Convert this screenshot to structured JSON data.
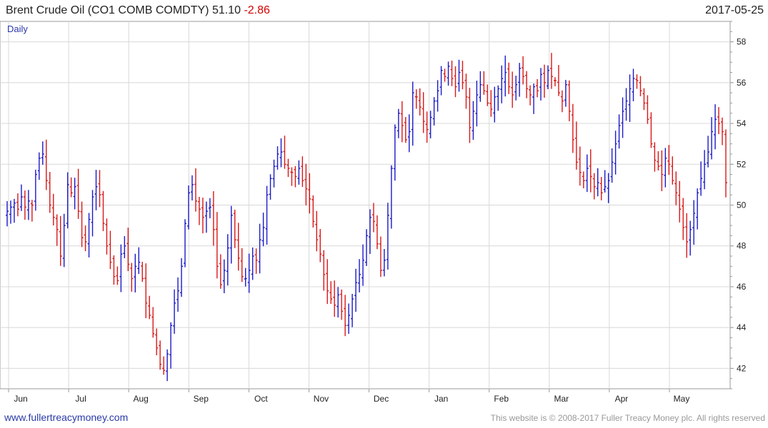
{
  "header": {
    "title_prefix": "Brent Crude Oil  (CO1 COMB COMDTY)",
    "last": "51.10",
    "change": "-2.86",
    "date": "2017-05-25"
  },
  "footer": {
    "site": "www.fullertreacymoney.com",
    "copyright": "This website is © 2008-2017 Fuller Treacy Money plc. All rights reserved"
  },
  "colors": {
    "up": "#1a1ac8",
    "down": "#d81818",
    "grid": "#d8d8d8",
    "frame": "#9a9a9a"
  },
  "chart_data": {
    "type": "bar",
    "style": "ohlc-daily",
    "period_label": "Daily",
    "ylim": [
      41,
      59
    ],
    "y_ticks": [
      42,
      44,
      46,
      48,
      50,
      52,
      54,
      56,
      58
    ],
    "x_ticks": [
      "Jun",
      "Jul",
      "Aug",
      "Sep",
      "Oct",
      "Nov",
      "Dec",
      "Jan",
      "Feb",
      "Mar",
      "Apr",
      "May"
    ],
    "grid": true,
    "approx_close_series": [
      49.7,
      49.9,
      50.1,
      49.8,
      50.4,
      49.9,
      50.2,
      50.0,
      51.5,
      52.3,
      52.5,
      51.2,
      50.0,
      49.4,
      48.8,
      47.5,
      49.0,
      51.0,
      50.6,
      50.9,
      49.7,
      48.4,
      48.2,
      49.3,
      50.4,
      50.9,
      50.5,
      49.1,
      48.0,
      47.2,
      46.5,
      46.3,
      47.6,
      48.0,
      47.1,
      46.4,
      47.0,
      47.2,
      46.4,
      45.2,
      44.6,
      43.7,
      43.0,
      42.2,
      41.9,
      42.7,
      44.1,
      45.2,
      45.8,
      47.0,
      49.1,
      50.6,
      51.0,
      50.2,
      49.8,
      49.4,
      49.7,
      49.9,
      48.8,
      47.0,
      46.1,
      46.8,
      47.9,
      49.5,
      48.3,
      47.4,
      46.5,
      46.4,
      46.8,
      47.5,
      47.3,
      48.3,
      48.9,
      50.5,
      51.3,
      51.9,
      52.5,
      52.6,
      52.0,
      51.8,
      51.6,
      51.4,
      51.8,
      51.2,
      50.8,
      50.3,
      49.2,
      48.3,
      47.6,
      46.6,
      45.8,
      45.4,
      45.1,
      45.6,
      44.8,
      44.1,
      44.6,
      45.4,
      46.2,
      46.6,
      47.3,
      48.5,
      49.4,
      49.2,
      48.1,
      46.8,
      47.3,
      49.5,
      51.8,
      53.8,
      54.5,
      53.9,
      53.2,
      53.6,
      55.5,
      55.3,
      54.8,
      54.1,
      53.7,
      54.3,
      55.1,
      55.6,
      56.6,
      56.3,
      56.8,
      56.2,
      55.8,
      56.5,
      56.0,
      55.3,
      53.8,
      54.6,
      55.4,
      55.9,
      55.6,
      55.0,
      54.7,
      55.3,
      55.7,
      56.2,
      56.5,
      55.8,
      55.4,
      55.9,
      56.7,
      56.3,
      55.7,
      55.4,
      55.8,
      55.6,
      56.4,
      56.0,
      56.6,
      56.3,
      56.1,
      55.5,
      55.1,
      55.9,
      54.6,
      53.2,
      52.1,
      51.6,
      51.2,
      51.8,
      51.4,
      50.9,
      51.1,
      50.6,
      50.9,
      51.2,
      52.1,
      53.0,
      53.9,
      54.6,
      55.1,
      55.7,
      56.2,
      56.1,
      55.6,
      55.0,
      54.2,
      53.0,
      52.2,
      51.9,
      51.5,
      52.3,
      52.0,
      51.2,
      50.6,
      49.8,
      48.9,
      48.2,
      48.8,
      49.6,
      50.6,
      51.3,
      52.0,
      52.6,
      53.6,
      54.2,
      54.0,
      53.6,
      51.1
    ]
  }
}
